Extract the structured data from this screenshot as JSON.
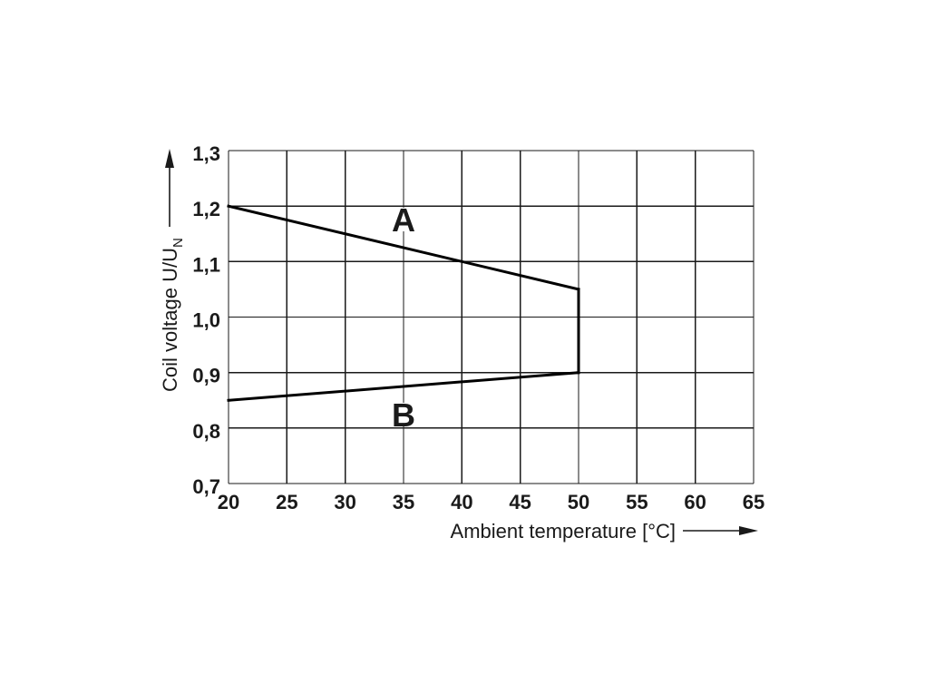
{
  "chart_data": {
    "type": "line",
    "xlabel": "Ambient temperature [°C]",
    "ylabel": {
      "text": "Coil voltage U/U",
      "subscript": "N"
    },
    "xlim": [
      20,
      65
    ],
    "ylim": [
      0.7,
      1.3
    ],
    "xticks": [
      20,
      25,
      30,
      35,
      40,
      45,
      50,
      55,
      60,
      65
    ],
    "xtick_labels": [
      "20",
      "25",
      "30",
      "35",
      "40",
      "45",
      "50",
      "55",
      "60",
      "65"
    ],
    "yticks": [
      0.7,
      0.8,
      0.9,
      1.0,
      1.1,
      1.2,
      1.3
    ],
    "ytick_labels": [
      "0,7",
      "0,8",
      "0,9",
      "1,0",
      "1,1",
      "1,2",
      "1,3"
    ],
    "grid": true,
    "series": [
      {
        "name": "A",
        "x": [
          20,
          50
        ],
        "y": [
          1.2,
          1.05
        ],
        "color": "#000000"
      },
      {
        "name": "B",
        "x": [
          20,
          50
        ],
        "y": [
          0.85,
          0.9
        ],
        "color": "#000000"
      },
      {
        "x": [
          50,
          50
        ],
        "y": [
          1.05,
          0.9
        ],
        "color": "#000000"
      }
    ]
  }
}
